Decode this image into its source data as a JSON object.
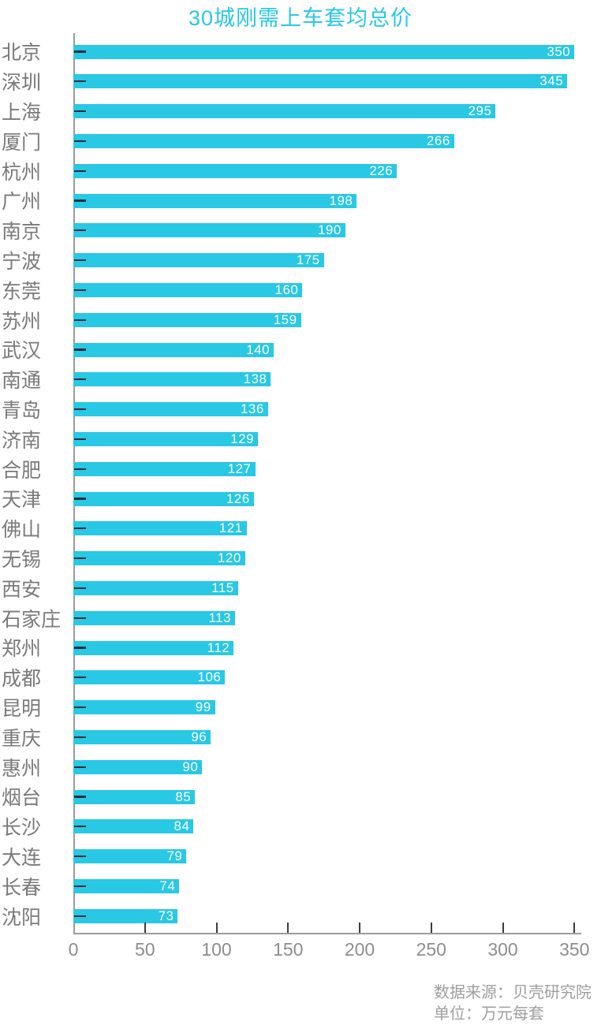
{
  "chart_data": {
    "type": "bar",
    "orientation": "horizontal",
    "title": "30城刚需上车套均总价",
    "categories": [
      "北京",
      "深圳",
      "上海",
      "厦门",
      "杭州",
      "广州",
      "南京",
      "宁波",
      "东莞",
      "苏州",
      "武汉",
      "南通",
      "青岛",
      "济南",
      "合肥",
      "天津",
      "佛山",
      "无锡",
      "西安",
      "石家庄",
      "郑州",
      "成都",
      "昆明",
      "重庆",
      "惠州",
      "烟台",
      "长沙",
      "大连",
      "长春",
      "沈阳"
    ],
    "values": [
      350,
      345,
      295,
      266,
      226,
      198,
      190,
      175,
      160,
      159,
      140,
      138,
      136,
      129,
      127,
      126,
      121,
      120,
      115,
      113,
      112,
      106,
      99,
      96,
      90,
      85,
      84,
      79,
      74,
      73
    ],
    "xlim": [
      0,
      350
    ],
    "x_ticks": [
      0,
      50,
      100,
      150,
      200,
      250,
      300,
      350
    ],
    "grid": false,
    "legend": "none",
    "value_labels": "inside-right",
    "colors": {
      "bar": "#29c8e4",
      "title": "#29c8e4",
      "city_label": "#7a7a7a",
      "spine": "#9b9b9b",
      "x_tick_mark": "#3c3c3c",
      "y_tick_mark": "#22303c",
      "x_tick_label": "#8d8d8d",
      "value_label": "#ffffff",
      "footer": "#9e9e9e"
    }
  },
  "footer": {
    "source": "数据来源：贝壳研究院",
    "unit": "单位：万元每套"
  }
}
